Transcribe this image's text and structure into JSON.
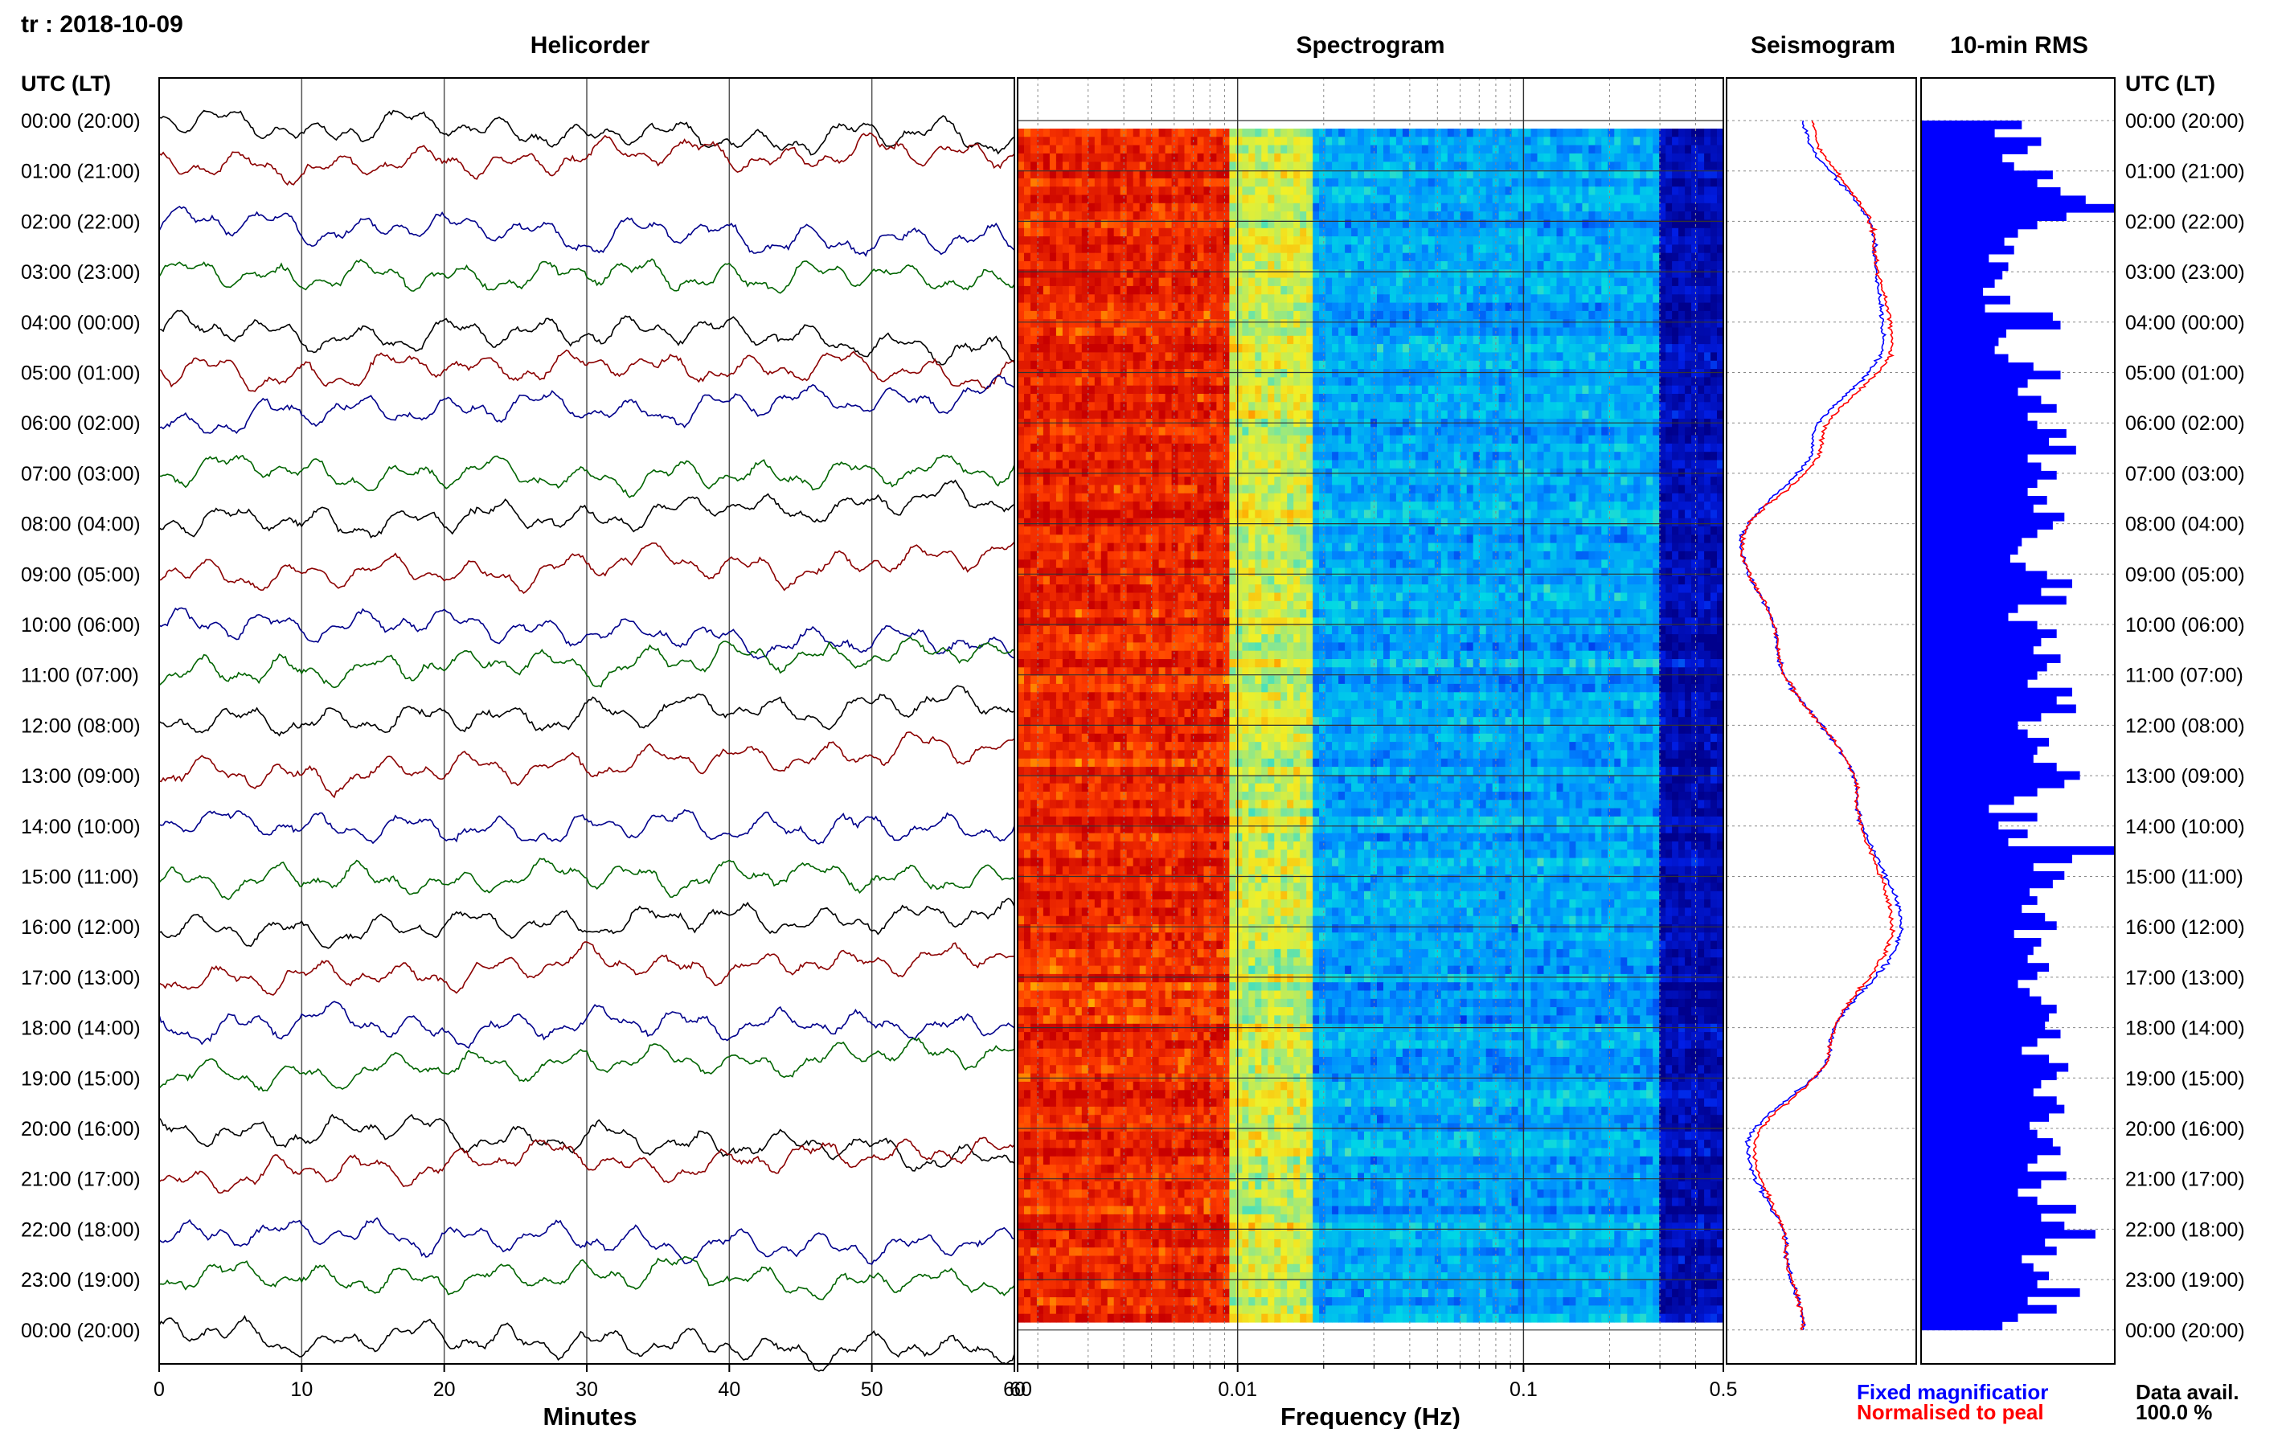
{
  "header": {
    "station_date": "tr : 2018-10-09",
    "helicorder_title": "Helicorder",
    "spectrogram_title": "Spectrogram",
    "seismogram_title": "Seismogram",
    "rms_title": "10-min RMS",
    "time_label_left": "UTC (LT)",
    "time_label_right": "UTC (LT)"
  },
  "footer": {
    "minutes_label": "Minutes",
    "frequency_label": "Frequency (Hz)",
    "legend_fixed": "Fixed magnificatior",
    "legend_normalised": "Normalised to peal",
    "data_avail_label": "Data avail.",
    "data_avail_value": "100.0 %"
  },
  "colors": {
    "trace_cycle": [
      "#000000",
      "#8b0000",
      "#00008b",
      "#006400"
    ],
    "fixed_magnification": "#0000ff",
    "normalised_to_peak": "#ff0000",
    "rms_bars": "#0000ff"
  },
  "chart_data": [
    {
      "type": "line",
      "name": "helicorder",
      "xlabel": "Minutes",
      "xlim": [
        0,
        60
      ],
      "x_ticks": [
        "0",
        "10",
        "20",
        "30",
        "40",
        "50",
        "60"
      ],
      "row_labels": [
        "00:00 (20:00)",
        "01:00 (21:00)",
        "02:00 (22:00)",
        "03:00 (23:00)",
        "04:00 (00:00)",
        "05:00 (01:00)",
        "06:00 (02:00)",
        "07:00 (03:00)",
        "08:00 (04:00)",
        "09:00 (05:00)",
        "10:00 (06:00)",
        "11:00 (07:00)",
        "12:00 (08:00)",
        "13:00 (09:00)",
        "14:00 (10:00)",
        "15:00 (11:00)",
        "16:00 (12:00)",
        "17:00 (13:00)",
        "18:00 (14:00)",
        "19:00 (15:00)",
        "20:00 (16:00)",
        "21:00 (17:00)",
        "22:00 (18:00)",
        "23:00 (19:00)",
        "00:00 (20:00)"
      ],
      "grid": true
    },
    {
      "type": "heatmap",
      "name": "spectrogram",
      "xlabel": "Frequency (Hz)",
      "x_scale": "log",
      "xlim": [
        0.0017,
        0.5
      ],
      "x_ticks": [
        "60",
        "0.01",
        "0.1",
        "0.5"
      ],
      "color_bands": [
        {
          "from_hz": 0.0017,
          "to_hz": 0.0095,
          "level": "high"
        },
        {
          "from_hz": 0.0095,
          "to_hz": 0.018,
          "level": "medium"
        },
        {
          "from_hz": 0.018,
          "to_hz": 0.3,
          "level": "low"
        },
        {
          "from_hz": 0.3,
          "to_hz": 0.5,
          "level": "minimum"
        }
      ]
    },
    {
      "type": "line",
      "name": "seismogram",
      "series": [
        {
          "name": "Fixed magnificatior",
          "x": [
            0.4,
            0.8,
            0.85,
            0.45,
            0.05,
            0.25,
            0.7,
            0.95,
            0.55,
            0.08,
            0.3,
            0.4
          ]
        },
        {
          "name": "Normalised to peal",
          "x": [
            0.45,
            0.8,
            0.9,
            0.5,
            0.05,
            0.25,
            0.7,
            0.9,
            0.55,
            0.12,
            0.3,
            0.4
          ]
        }
      ],
      "y_hours": [
        0,
        2.4,
        4.4,
        6.4,
        8.4,
        10.4,
        13.4,
        16,
        18.4,
        20.4,
        22.4,
        24
      ]
    },
    {
      "type": "bar",
      "name": "10-min RMS",
      "orientation": "horizontal",
      "values": [
        0.52,
        0.38,
        0.62,
        0.55,
        0.42,
        0.48,
        0.68,
        0.6,
        0.72,
        0.85,
        1.0,
        0.75,
        0.6,
        0.5,
        0.43,
        0.48,
        0.35,
        0.45,
        0.42,
        0.38,
        0.32,
        0.46,
        0.33,
        0.68,
        0.72,
        0.44,
        0.4,
        0.38,
        0.45,
        0.58,
        0.72,
        0.55,
        0.5,
        0.62,
        0.7,
        0.55,
        0.6,
        0.75,
        0.66,
        0.8,
        0.55,
        0.62,
        0.7,
        0.6,
        0.55,
        0.65,
        0.58,
        0.74,
        0.68,
        0.6,
        0.52,
        0.5,
        0.46,
        0.54,
        0.65,
        0.78,
        0.62,
        0.75,
        0.5,
        0.45,
        0.6,
        0.7,
        0.62,
        0.58,
        0.72,
        0.65,
        0.6,
        0.55,
        0.78,
        0.7,
        0.8,
        0.62,
        0.5,
        0.55,
        0.66,
        0.6,
        0.58,
        0.7,
        0.82,
        0.74,
        0.6,
        0.48,
        0.35,
        0.6,
        0.4,
        0.55,
        0.45,
        1.0,
        0.78,
        0.58,
        0.74,
        0.68,
        0.56,
        0.6,
        0.52,
        0.64,
        0.7,
        0.48,
        0.62,
        0.58,
        0.55,
        0.66,
        0.6,
        0.5,
        0.56,
        0.62,
        0.7,
        0.66,
        0.64,
        0.72,
        0.6,
        0.52,
        0.66,
        0.76,
        0.7,
        0.62,
        0.58,
        0.7,
        0.74,
        0.66,
        0.56,
        0.6,
        0.68,
        0.72,
        0.6,
        0.55,
        0.75,
        0.62,
        0.5,
        0.6,
        0.8,
        0.62,
        0.74,
        0.9,
        0.64,
        0.7,
        0.52,
        0.58,
        0.66,
        0.6,
        0.82,
        0.55,
        0.7,
        0.5,
        0.42
      ]
    }
  ]
}
